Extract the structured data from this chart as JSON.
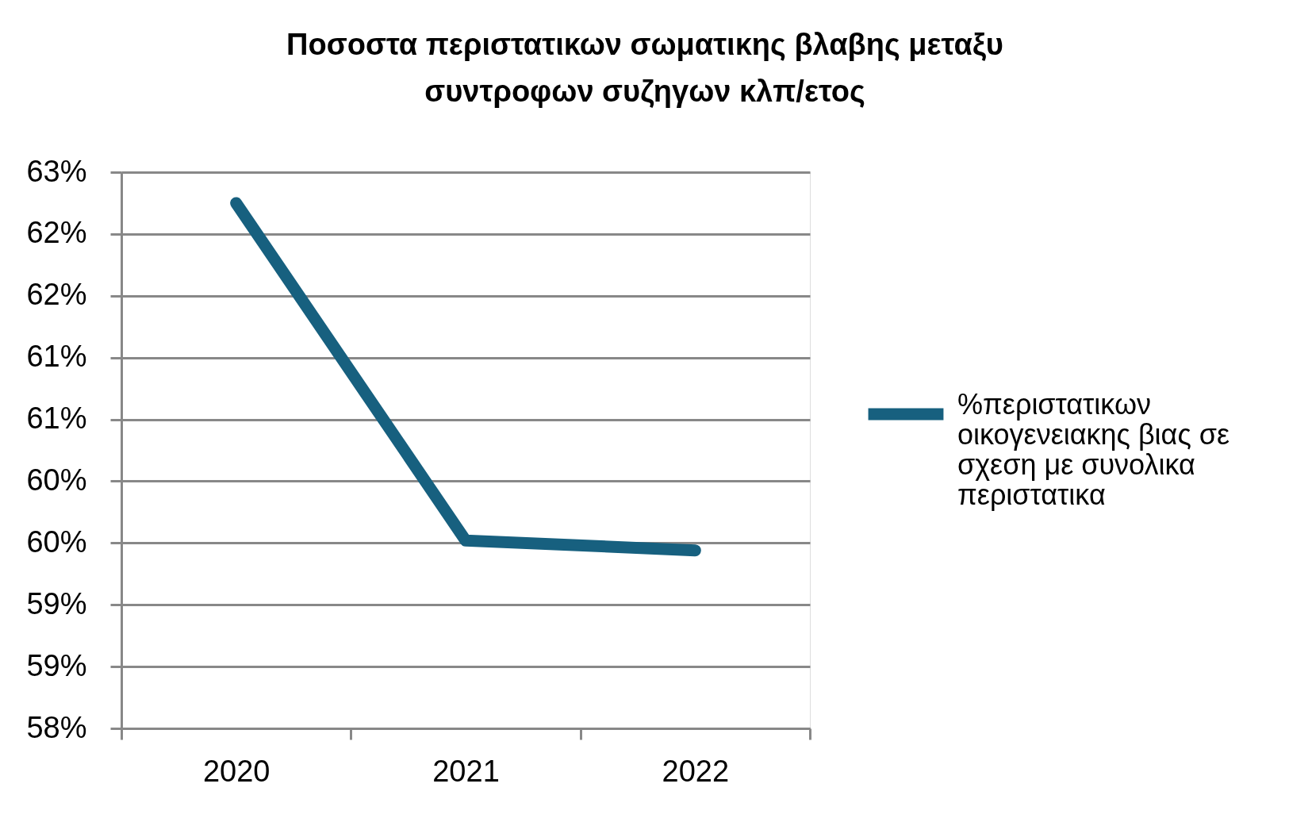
{
  "chart_data": {
    "type": "line",
    "title": "Ποσοστα περιστατικων σωματικης βλαβης μεταξυ συντροφων συζηγων κλπ/ετος",
    "categories": [
      "2020",
      "2021",
      "2022"
    ],
    "series": [
      {
        "name": "%περιστατικων οικογενειακης βιας σε σχεση με συνολικα περιστατικα",
        "color": "#17607f",
        "values": [
          62.25,
          59.52,
          59.44
        ]
      }
    ],
    "ylim": [
      58,
      62.5
    ],
    "yticks": [
      {
        "value": 58,
        "label": "58%"
      },
      {
        "value": 58.5,
        "label": "59%"
      },
      {
        "value": 59,
        "label": "59%"
      },
      {
        "value": 59.5,
        "label": "60%"
      },
      {
        "value": 60,
        "label": "60%"
      },
      {
        "value": 60.5,
        "label": "61%"
      },
      {
        "value": 61,
        "label": "61%"
      },
      {
        "value": 61.5,
        "label": "62%"
      },
      {
        "value": 62,
        "label": "62%"
      },
      {
        "value": 62.5,
        "label": "63%"
      }
    ],
    "grid": "y",
    "legend": "right",
    "line_style": "solid"
  }
}
